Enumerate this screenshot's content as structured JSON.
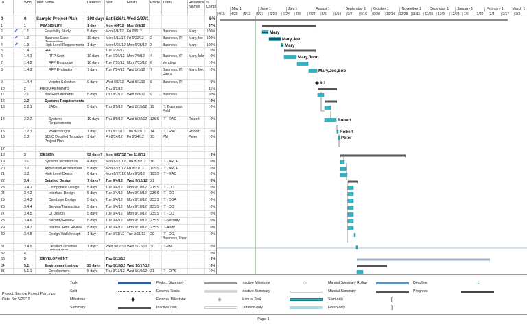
{
  "columns": {
    "id": "ID",
    "indicators": "",
    "wbs": "WBS",
    "task_name": "Task Name",
    "duration": "Duration",
    "start": "Start",
    "finish": "Finish",
    "predecessors": "Prede",
    "team": "Team",
    "resource_names": "Resource Names",
    "complete": "% Compl"
  },
  "timescale": {
    "months": [
      "May 1",
      "June 1",
      "July 1",
      "August 1",
      "September 1",
      "October 1",
      "November 1",
      "December 1",
      "January 1",
      "February 1",
      "March 1"
    ],
    "weeks": [
      "4/15",
      "4/29",
      "5/13",
      "5/27",
      "6/10",
      "6/24",
      "7/8",
      "7/22",
      "8/5",
      "8/19",
      "9/2",
      "9/16",
      "9/30",
      "10/14",
      "10/28",
      "11/11",
      "11/25",
      "12/9",
      "12/23",
      "1/6",
      "1/20",
      "2/3",
      "2/17",
      "3/3"
    ]
  },
  "tasks": [
    {
      "id": "0",
      "check": false,
      "wbs": "0",
      "name": "Sample Project Plan",
      "duration": "198 days",
      "start": "Sat 5/26/12",
      "finish": "Wed 2/27/13",
      "pred": "",
      "team": "",
      "res": "",
      "pct": "5%",
      "style": "big",
      "indent": 0
    },
    {
      "id": "1",
      "check": false,
      "wbs": "1",
      "name": "FEASIBILITY",
      "duration": "1 day",
      "start": "Mon 6/4/12",
      "finish": "Mon 6/4/12",
      "pred": "",
      "team": "",
      "res": "",
      "pct": "37%",
      "style": "bold",
      "indent": 1
    },
    {
      "id": "2",
      "check": true,
      "wbs": "1.1",
      "name": "Feasibility Study",
      "duration": "5 days",
      "start": "Mon 6/4/12",
      "finish": "Fri 6/8/12",
      "pred": "",
      "team": "Business",
      "res": "Mary",
      "pct": "100%",
      "style": "",
      "indent": 2
    },
    {
      "id": "3",
      "check": true,
      "wbs": "1.2",
      "name": "Business Case Preparation",
      "duration": "10 days",
      "start": "Mon 6/11/12",
      "finish": "Fri 6/22/12",
      "pred": "2",
      "team": "Business, IT",
      "res": "Mary,Joe",
      "pct": "100%",
      "style": "",
      "indent": 2
    },
    {
      "id": "4",
      "check": true,
      "wbs": "1.3",
      "name": "High Level Requirements",
      "duration": "1 day",
      "start": "Mon 6/25/12",
      "finish": "Mon 6/25/12",
      "pred": "3",
      "team": "Business",
      "res": "Mary",
      "pct": "100%",
      "style": "",
      "indent": 2
    },
    {
      "id": "5",
      "check": false,
      "wbs": "1.4",
      "name": "RFP",
      "duration": "",
      "start": "Tue 6/26/12",
      "finish": "",
      "pred": "",
      "team": "",
      "res": "",
      "pct": "0%",
      "style": "",
      "indent": 2
    },
    {
      "id": "6",
      "check": false,
      "wbs": "1.4.1",
      "name": "RFP Sent",
      "duration": "10 days",
      "start": "Tue 6/26/12",
      "finish": "Mon 7/9/12",
      "pred": "4",
      "team": "Business, IT",
      "res": "Mary,John",
      "pct": "0%",
      "style": "",
      "indent": 3
    },
    {
      "id": "7",
      "check": false,
      "wbs": "1.4.2",
      "name": "RFP Response",
      "duration": "10 days",
      "start": "Tue 7/10/12",
      "finish": "Mon 7/23/12",
      "pred": "6",
      "team": "Vendors",
      "res": "",
      "pct": "0%",
      "style": "",
      "indent": 3
    },
    {
      "id": "8",
      "check": false,
      "wbs": "1.4.3",
      "name": "RFP Evaluation",
      "duration": "7 days",
      "start": "Tue 7/24/12",
      "finish": "Wed 8/1/12",
      "pred": "7",
      "team": "Business, IT, Users",
      "res": "Mary,Joe,E",
      "pct": "0%",
      "style": "",
      "indent": 3
    },
    {
      "id": "9",
      "check": false,
      "wbs": "1.4.4",
      "name": "Vendor Selection",
      "duration": "0 days",
      "start": "Wed 8/1/12",
      "finish": "Wed 8/1/12",
      "pred": "8",
      "team": "Business, IT",
      "res": "",
      "pct": "0%",
      "style": "",
      "indent": 3
    },
    {
      "id": "10",
      "check": false,
      "wbs": "2",
      "name": "REQUIREMENTS",
      "duration": "",
      "start": "Thu 8/2/12",
      "finish": "",
      "pred": "",
      "team": "",
      "res": "",
      "pct": "11%",
      "style": "",
      "indent": 1
    },
    {
      "id": "11",
      "check": false,
      "wbs": "2.1",
      "name": "Bus Requirements",
      "duration": "5 days",
      "start": "Thu 8/2/12",
      "finish": "Wed 8/8/12",
      "pred": "9",
      "team": "Business",
      "res": "",
      "pct": "50%",
      "style": "",
      "indent": 2
    },
    {
      "id": "12",
      "check": false,
      "wbs": "2.2",
      "name": "Systems Requirements",
      "duration": "",
      "start": "",
      "finish": "",
      "pred": "",
      "team": "",
      "res": "",
      "pct": "0%",
      "style": "bold",
      "indent": 2
    },
    {
      "id": "13",
      "check": false,
      "wbs": "2.2.1",
      "name": "JADs",
      "duration": "5 days",
      "start": "Thu 8/9/12",
      "finish": "Wed 8/15/12",
      "pred": "11",
      "team": "IT, Business, Field",
      "res": "",
      "pct": "0%",
      "style": "",
      "indent": 3
    },
    {
      "id": "14",
      "check": false,
      "wbs": "2.2.2",
      "name": "Systems Requirements",
      "duration": "10 days",
      "start": "Thu 8/9/12",
      "finish": "Wed 8/22/12",
      "pred": "13SS",
      "team": "IT - RAD",
      "res": "Robert",
      "pct": "0%",
      "style": "",
      "indent": 3
    },
    {
      "id": "15",
      "check": false,
      "wbs": "2.2.3",
      "name": "Walkthroughs",
      "duration": "1 day",
      "start": "Thu 8/23/12",
      "finish": "Thu 8/23/12",
      "pred": "14",
      "team": "IT - RAD",
      "res": "Robert",
      "pct": "0%",
      "style": "",
      "indent": 3
    },
    {
      "id": "16",
      "check": false,
      "wbs": "2.3",
      "name": "SDLC Detailed Tentative Project Plan",
      "duration": "1 day",
      "start": "Fri 8/24/12",
      "finish": "Fri 8/24/12",
      "pred": "15",
      "team": "PM",
      "res": "Peter",
      "pct": "0%",
      "style": "",
      "indent": 2
    },
    {
      "id": "17",
      "check": false,
      "wbs": "",
      "name": "",
      "duration": "",
      "start": "",
      "finish": "",
      "pred": "",
      "team": "",
      "res": "",
      "pct": "",
      "style": "",
      "indent": 0
    },
    {
      "id": "18",
      "check": false,
      "wbs": "3",
      "name": "DESIGN",
      "duration": "52 days?",
      "start": "Mon 8/27/12",
      "finish": "Tue 11/6/12",
      "pred": "",
      "team": "",
      "res": "",
      "pct": "0%",
      "style": "bold",
      "indent": 1
    },
    {
      "id": "19",
      "check": false,
      "wbs": "3.1",
      "name": "Systems architecture",
      "duration": "4 days",
      "start": "Mon 8/27/12",
      "finish": "Thu 8/30/12",
      "pred": "16",
      "team": "IT - ARCH",
      "res": "",
      "pct": "0%",
      "style": "",
      "indent": 2
    },
    {
      "id": "20",
      "check": false,
      "wbs": "3.2",
      "name": "Application Architecture",
      "duration": "5 days",
      "start": "Mon 8/27/12",
      "finish": "Fri 8/31/12",
      "pred": "19SS",
      "team": "IT - ARCH",
      "res": "",
      "pct": "0%",
      "style": "",
      "indent": 2
    },
    {
      "id": "21",
      "check": false,
      "wbs": "3.3",
      "name": "High Level Design",
      "duration": "6 days",
      "start": "Mon 8/27/12",
      "finish": "Mon 9/3/12",
      "pred": "19SS",
      "team": "IT - RAD",
      "res": "",
      "pct": "0%",
      "style": "",
      "indent": 2
    },
    {
      "id": "22",
      "check": false,
      "wbs": "3.4",
      "name": "Detailed Design",
      "duration": "7 days?",
      "start": "Tue 9/4/12",
      "finish": "Wed 9/12/12",
      "pred": "21",
      "team": "",
      "res": "",
      "pct": "0%",
      "style": "bold",
      "indent": 2
    },
    {
      "id": "23",
      "check": false,
      "wbs": "3.4.1",
      "name": "Component Design",
      "duration": "5 days",
      "start": "Tue 9/4/12",
      "finish": "Mon 9/10/12",
      "pred": "21SS",
      "team": "IT - DD",
      "res": "",
      "pct": "0%",
      "style": "",
      "indent": 3
    },
    {
      "id": "24",
      "check": false,
      "wbs": "3.4.2",
      "name": "Interface Design",
      "duration": "5 days",
      "start": "Tue 9/4/12",
      "finish": "Mon 9/10/12",
      "pred": "23SS",
      "team": "IT - DD",
      "res": "",
      "pct": "0%",
      "style": "",
      "indent": 3
    },
    {
      "id": "25",
      "check": false,
      "wbs": "3.4.3",
      "name": "Database Design",
      "duration": "5 days",
      "start": "Tue 9/4/12",
      "finish": "Mon 9/10/12",
      "pred": "23SS",
      "team": "IT - DBA",
      "res": "",
      "pct": "0%",
      "style": "",
      "indent": 3
    },
    {
      "id": "26",
      "check": false,
      "wbs": "3.4.4",
      "name": "Service/Transaction",
      "duration": "5 days",
      "start": "Tue 9/4/12",
      "finish": "Mon 9/10/12",
      "pred": "23SS",
      "team": "IT - DD",
      "res": "",
      "pct": "0%",
      "style": "",
      "indent": 3
    },
    {
      "id": "27",
      "check": false,
      "wbs": "3.4.5",
      "name": "UI Design",
      "duration": "5 days",
      "start": "Tue 9/4/12",
      "finish": "Mon 9/10/12",
      "pred": "23SS",
      "team": "IT - DD",
      "res": "",
      "pct": "0%",
      "style": "",
      "indent": 3
    },
    {
      "id": "28",
      "check": false,
      "wbs": "3.4.6",
      "name": "Security Review",
      "duration": "5 days",
      "start": "Tue 9/4/12",
      "finish": "Mon 9/10/12",
      "pred": "23SS",
      "team": "IT-Security",
      "res": "",
      "pct": "0%",
      "style": "",
      "indent": 3
    },
    {
      "id": "29",
      "check": false,
      "wbs": "3.4.7",
      "name": "Internal Audit Review",
      "duration": "5 days",
      "start": "Tue 9/4/12",
      "finish": "Mon 9/10/12",
      "pred": "23SS",
      "team": "IT-Audit",
      "res": "",
      "pct": "0%",
      "style": "",
      "indent": 3
    },
    {
      "id": "30",
      "check": false,
      "wbs": "3.4.8",
      "name": "Design Walkthrough",
      "duration": "1 day",
      "start": "Tue 9/11/12",
      "finish": "Tue 9/11/12",
      "pred": "29",
      "team": "IT - DD, Business, User",
      "res": "",
      "pct": "0%",
      "style": "",
      "indent": 3
    },
    {
      "id": "31",
      "check": false,
      "wbs": "3.4.9",
      "name": "Detailed Tentative Project Plan",
      "duration": "1 day?",
      "start": "Wed 9/12/12",
      "finish": "Wed 9/12/12",
      "pred": "30",
      "team": "IT-PM",
      "res": "",
      "pct": "0%",
      "style": "",
      "indent": 3
    },
    {
      "id": "32",
      "check": false,
      "wbs": "4",
      "name": "",
      "duration": "",
      "start": "",
      "finish": "",
      "pred": "",
      "team": "",
      "res": "",
      "pct": "0%",
      "style": "",
      "indent": 1
    },
    {
      "id": "33",
      "check": false,
      "wbs": "5",
      "name": "DEVELOPMENT",
      "duration": "",
      "start": "Thu 9/13/12",
      "finish": "",
      "pred": "",
      "team": "",
      "res": "",
      "pct": "0%",
      "style": "bold",
      "indent": 1
    },
    {
      "id": "34",
      "check": false,
      "wbs": "5.1",
      "name": "Environment set-up",
      "duration": "25 days",
      "start": "Thu 9/13/12",
      "finish": "Wed 10/17/12",
      "pred": "",
      "team": "",
      "res": "",
      "pct": "0%",
      "style": "bold",
      "indent": 2
    },
    {
      "id": "35",
      "check": false,
      "wbs": "5.1.1",
      "name": "Development Environment",
      "duration": "5 days",
      "start": "Thu 9/13/12",
      "finish": "Wed 9/19/12",
      "pred": "31",
      "team": "IT - OPS",
      "res": "",
      "pct": "0%",
      "style": "",
      "indent": 3
    }
  ],
  "gantt_labels": {
    "t2": "Mary",
    "t3": "Mary,Joe",
    "t4": "Mary",
    "t6": "Mary,John",
    "t8": "Mary,Joe,Bob",
    "t9": "8/1",
    "t14": "Robert",
    "t15": "Robert",
    "t16": "Peter"
  },
  "legend": {
    "project_info": [
      "Project: Sample Project Plan.mpp",
      "Date: Sat 5/26/12"
    ],
    "items": [
      {
        "label": "Task",
        "sym": "task"
      },
      {
        "label": "Split",
        "sym": "split"
      },
      {
        "label": "Milestone",
        "sym": "milestone"
      },
      {
        "label": "Summary",
        "sym": "summary"
      },
      {
        "label": "Project Summary",
        "sym": "project-summary"
      },
      {
        "label": "External Tasks",
        "sym": "external-tasks"
      },
      {
        "label": "External Milestone",
        "sym": "external-milestone"
      },
      {
        "label": "Inactive Task",
        "sym": "inactive-task"
      },
      {
        "label": "Inactive Milestone",
        "sym": "inactive-milestone"
      },
      {
        "label": "Inactive Summary",
        "sym": "inactive-summary"
      },
      {
        "label": "Manual Task",
        "sym": "manual-task"
      },
      {
        "label": "Duration-only",
        "sym": "duration-only"
      },
      {
        "label": "Manual Summary Rollup",
        "sym": "manual-summary-rollup"
      },
      {
        "label": "Manual Summary",
        "sym": "manual-summary"
      },
      {
        "label": "Start-only",
        "sym": "start-only"
      },
      {
        "label": "Finish-only",
        "sym": "finish-only"
      },
      {
        "label": "Deadline",
        "sym": "deadline"
      },
      {
        "label": "Progress",
        "sym": "progress"
      }
    ]
  },
  "footer": {
    "page": "Page 1"
  },
  "colors": {
    "task_bar": "#2fb5c4",
    "summary_bar": "#555555",
    "deadline": "#2aa02a"
  }
}
